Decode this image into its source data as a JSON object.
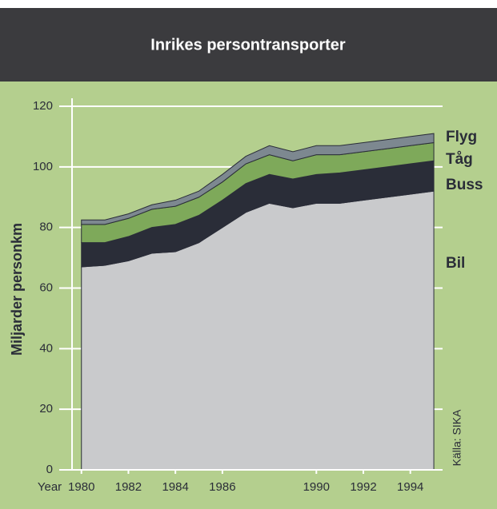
{
  "chart_data": {
    "type": "stacked_area",
    "title": "Inrikes persontransporter",
    "ylabel": "Miljarder personkm",
    "xlabel": "Year",
    "source": "Källa: SIKA",
    "x": [
      1980,
      1981,
      1982,
      1983,
      1984,
      1985,
      1986,
      1987,
      1988,
      1989,
      1990,
      1991,
      1992,
      1993,
      1994,
      1995
    ],
    "xlim": [
      1979.6,
      1995.1
    ],
    "xticks": [
      1980,
      1982,
      1984,
      1986,
      1990,
      1992,
      1994
    ],
    "ylim": [
      0,
      120
    ],
    "yticks": [
      0,
      20,
      40,
      60,
      80,
      100,
      120
    ],
    "grid": true,
    "series": [
      {
        "name": "Bil",
        "color": "#c9cacc",
        "values": [
          67,
          67.5,
          69,
          71.5,
          72,
          75,
          80,
          85,
          88,
          86.5,
          88,
          88,
          89,
          90,
          91,
          92
        ]
      },
      {
        "name": "Buss",
        "color": "#2a2d38",
        "values": [
          8,
          7.5,
          8,
          8.5,
          9,
          9,
          9,
          9.5,
          9.5,
          9.5,
          9.5,
          10,
          10,
          10,
          10,
          10
        ]
      },
      {
        "name": "Tåg",
        "color": "#7ea95a",
        "values": [
          6,
          6,
          6,
          6,
          6,
          6,
          6,
          6.5,
          6.5,
          6,
          6.5,
          6,
          6,
          6,
          6,
          6
        ]
      },
      {
        "name": "Flyg",
        "color": "#7d8890",
        "values": [
          1.5,
          1.5,
          1.5,
          1.5,
          2,
          2,
          2.5,
          2.5,
          3,
          3,
          3,
          3,
          3,
          3,
          3,
          3
        ]
      }
    ]
  }
}
